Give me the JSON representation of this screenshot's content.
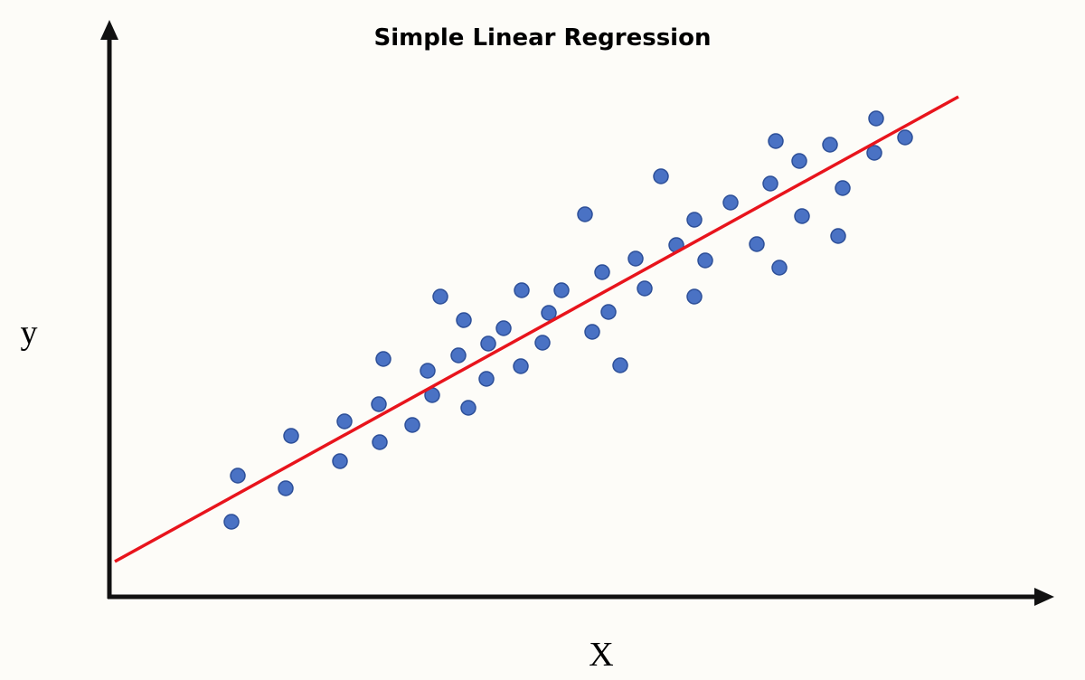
{
  "chart_data": {
    "type": "scatter",
    "title": "Simple Linear Regression",
    "x_label": "X",
    "y_label": "y",
    "xlim": [
      0,
      1040
    ],
    "ylim": [
      0,
      600
    ],
    "color": "#4a72c4",
    "x": [
      143,
      136,
      196,
      202,
      256,
      261,
      299,
      300,
      304,
      336,
      353,
      358,
      367,
      387,
      393,
      398,
      418,
      420,
      437,
      456,
      457,
      480,
      487,
      501,
      527,
      535,
      546,
      553,
      566,
      583,
      593,
      611,
      628,
      648,
      648,
      660,
      688,
      717,
      732,
      738,
      742,
      764,
      767,
      798,
      807,
      812,
      847,
      849,
      881
    ],
    "y": [
      134,
      83,
      120,
      178,
      150,
      194,
      213,
      171,
      263,
      190,
      250,
      223,
      332,
      267,
      306,
      209,
      241,
      280,
      297,
      255,
      339,
      281,
      314,
      339,
      423,
      293,
      359,
      315,
      256,
      374,
      341,
      465,
      389,
      417,
      332,
      372,
      436,
      390,
      457,
      504,
      364,
      482,
      421,
      500,
      399,
      452,
      491,
      529,
      508
    ],
    "fit_line": {
      "x": [
        7,
        940
      ],
      "y": [
        39,
        553
      ],
      "color": "#e8141c"
    }
  }
}
